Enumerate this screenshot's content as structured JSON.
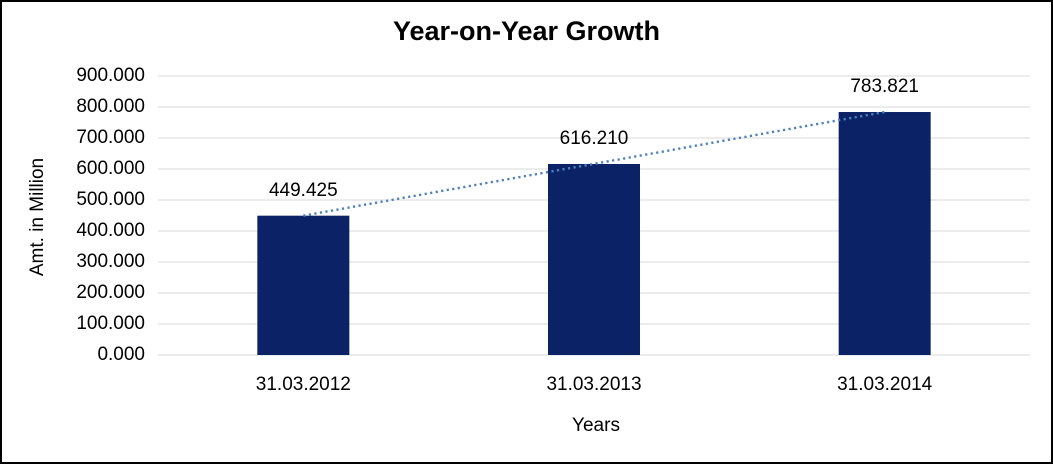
{
  "chart_data": {
    "type": "bar",
    "title": "Year-on-Year Growth",
    "categories": [
      "31.03.2012",
      "31.03.2013",
      "31.03.2014"
    ],
    "values": [
      449.425,
      616.21,
      783.821
    ],
    "value_labels": [
      "449.425",
      "616.210",
      "783.821"
    ],
    "xlabel": "Years",
    "ylabel": "Amt. in Million",
    "ylim": [
      0,
      900
    ],
    "y_tick_step": 100,
    "y_tick_labels_top_to_bottom": [
      "900.000",
      "800.000",
      "700.000",
      "600.000",
      "500.000",
      "400.000",
      "300.000",
      "200.000",
      "100.000",
      "0.000"
    ],
    "grid": true,
    "legend_position": "none",
    "trendline": {
      "type": "linear",
      "style": "dotted"
    },
    "colors": {
      "bar": "#0b2366",
      "trendline": "#4f81bd",
      "gridline": "#d9d9d9",
      "text": "#000000",
      "background": "#ffffff",
      "frame_border": "#000000"
    }
  }
}
